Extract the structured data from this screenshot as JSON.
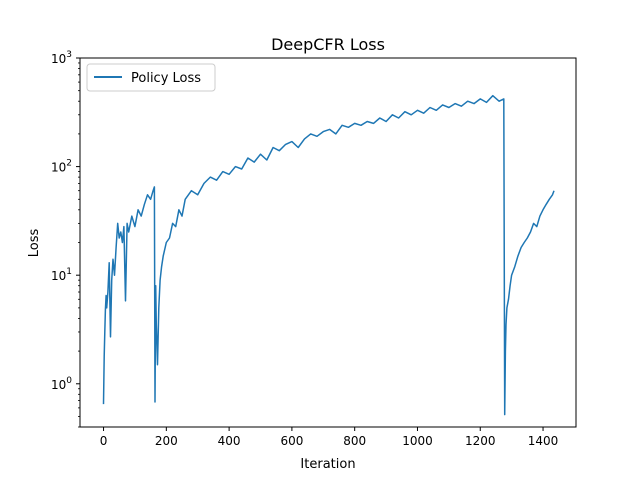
{
  "chart_data": {
    "type": "line",
    "title": "DeepCFR Loss",
    "xlabel": "Iteration",
    "ylabel": "Loss",
    "xlim": [
      -75,
      1505
    ],
    "ylim": [
      0.4,
      1000
    ],
    "yscale": "log",
    "grid": false,
    "legend_position": "top-left",
    "x_ticks": [
      0,
      200,
      400,
      600,
      800,
      1000,
      1200,
      1400
    ],
    "x_tick_labels": [
      "0",
      "200",
      "400",
      "600",
      "800",
      "1000",
      "1200",
      "1400"
    ],
    "y_ticks": [
      1,
      10,
      100,
      1000
    ],
    "y_tick_labels": [
      "10^0",
      "10^1",
      "10^2",
      "10^3"
    ],
    "series": [
      {
        "name": "Policy Loss",
        "color": "#1f77b4",
        "x": [
          0,
          2,
          4,
          6,
          8,
          10,
          14,
          18,
          22,
          26,
          30,
          35,
          40,
          45,
          50,
          55,
          60,
          65,
          70,
          75,
          80,
          90,
          100,
          110,
          120,
          130,
          140,
          150,
          158,
          162,
          164,
          166,
          168,
          172,
          176,
          180,
          185,
          190,
          200,
          210,
          220,
          230,
          240,
          250,
          260,
          280,
          300,
          320,
          340,
          360,
          380,
          400,
          420,
          440,
          460,
          480,
          500,
          520,
          540,
          560,
          580,
          600,
          620,
          640,
          660,
          680,
          700,
          720,
          740,
          760,
          780,
          800,
          820,
          840,
          860,
          880,
          900,
          920,
          940,
          960,
          980,
          1000,
          1020,
          1040,
          1060,
          1080,
          1100,
          1120,
          1140,
          1160,
          1180,
          1200,
          1220,
          1240,
          1260,
          1275,
          1278,
          1280,
          1282,
          1285,
          1290,
          1295,
          1300,
          1310,
          1320,
          1330,
          1340,
          1350,
          1360,
          1370,
          1380,
          1390,
          1400,
          1410,
          1420,
          1430,
          1435
        ],
        "y": [
          0.65,
          1.8,
          3.0,
          4.8,
          6.5,
          5.0,
          7.0,
          13.0,
          2.7,
          9.0,
          14.0,
          10.0,
          18.0,
          30.0,
          22.0,
          25.0,
          20.0,
          28.0,
          5.8,
          30.0,
          25.0,
          35.0,
          28.0,
          40.0,
          35.0,
          45.0,
          55.0,
          50.0,
          60.0,
          65.0,
          0.68,
          8.0,
          3.5,
          1.5,
          5.0,
          9.0,
          12.0,
          15.0,
          20.0,
          22.0,
          30.0,
          28.0,
          40.0,
          35.0,
          50.0,
          60.0,
          55.0,
          70.0,
          80.0,
          75.0,
          90.0,
          85.0,
          100.0,
          95.0,
          120.0,
          110.0,
          130.0,
          115.0,
          150.0,
          140.0,
          160.0,
          170.0,
          150.0,
          180.0,
          200.0,
          190.0,
          210.0,
          220.0,
          200.0,
          240.0,
          230.0,
          250.0,
          240.0,
          260.0,
          250.0,
          280.0,
          260.0,
          300.0,
          280.0,
          320.0,
          300.0,
          330.0,
          310.0,
          350.0,
          330.0,
          370.0,
          350.0,
          380.0,
          360.0,
          400.0,
          380.0,
          420.0,
          390.0,
          450.0,
          400.0,
          420.0,
          0.52,
          2.0,
          3.5,
          5.0,
          6.0,
          8.0,
          10.0,
          12.0,
          15.0,
          18.0,
          20.0,
          22.0,
          25.0,
          30.0,
          28.0,
          35.0,
          40.0,
          45.0,
          50.0,
          55.0,
          60.0
        ]
      }
    ]
  }
}
